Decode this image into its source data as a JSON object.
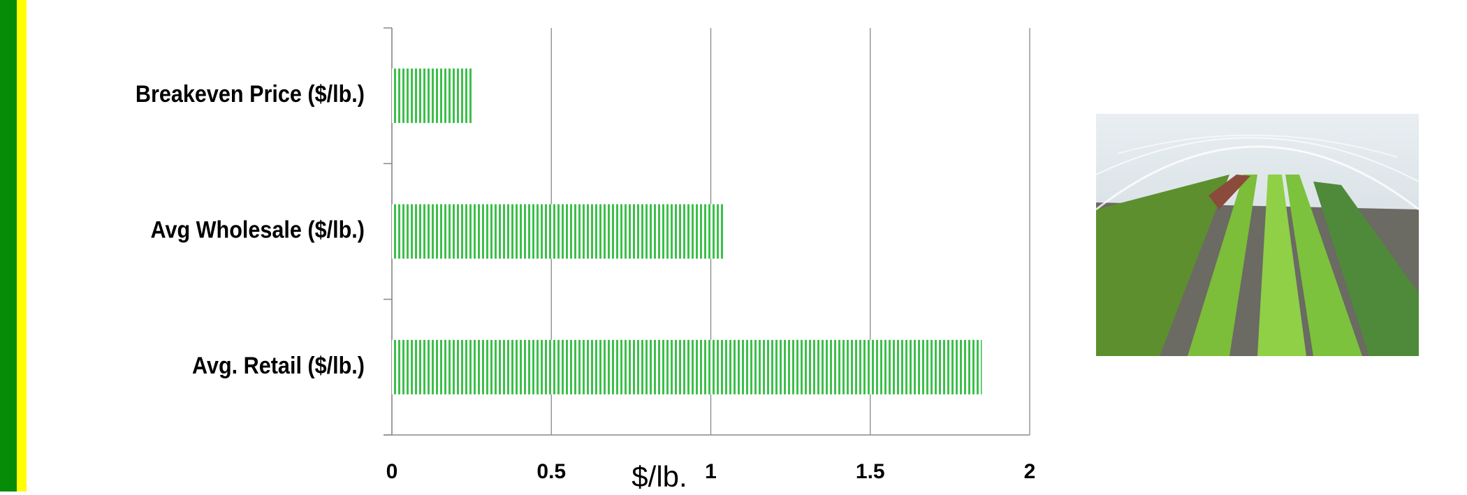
{
  "chart_data": {
    "type": "bar",
    "orientation": "horizontal",
    "categories": [
      "Breakeven Price ($/lb.)",
      "Avg Wholesale ($/lb.)",
      "Avg. Retail ($/lb.)"
    ],
    "values": [
      0.25,
      1.04,
      1.85
    ],
    "color": "#3cbf4a",
    "x_label": "$/lb.",
    "xlim": [
      0,
      2
    ],
    "xticks": [
      0,
      0.5,
      1,
      1.5,
      2
    ],
    "grid": true
  }
}
